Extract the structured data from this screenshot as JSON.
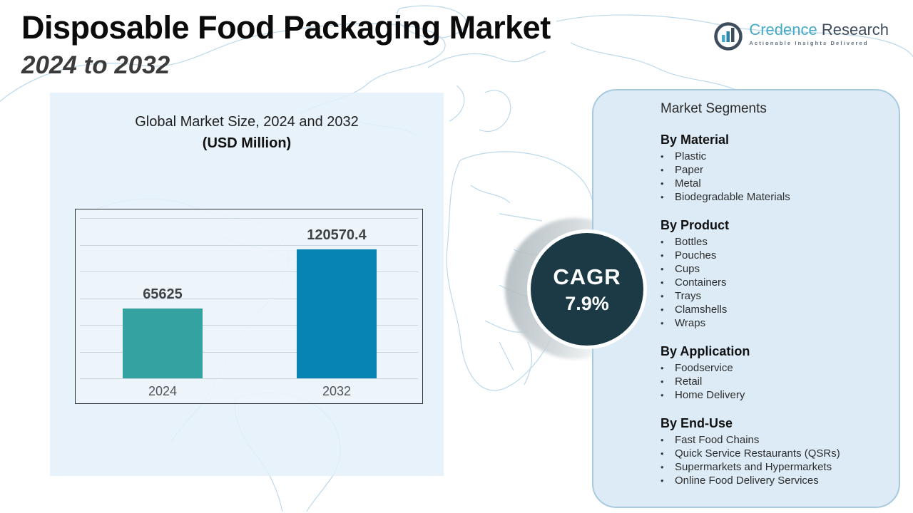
{
  "header": {
    "title": "Disposable Food Packaging Market",
    "subtitle": "2024 to 2032"
  },
  "logo": {
    "brand_primary": "Credence",
    "brand_secondary": "Research",
    "tagline": "Actionable Insights Delivered",
    "brand_primary_color": "#45a9c9",
    "brand_secondary_color": "#3e4d5e"
  },
  "chart_panel": {
    "title_line1": "Global Market Size, 2024 and 2032",
    "title_line2": "(USD Million)"
  },
  "chart_data": {
    "type": "bar",
    "title": "Global Market Size, 2024 and 2032 (USD Million)",
    "categories": [
      "2024",
      "2032"
    ],
    "values": [
      65625,
      120570.4
    ],
    "value_labels": [
      "65625",
      "120570.4"
    ],
    "bar_colors": [
      "#35a2a2",
      "#0884b4"
    ],
    "ylim": [
      0,
      150000
    ],
    "grid": true,
    "gridline_count": 7,
    "legend": "none",
    "xlabel": "",
    "ylabel": ""
  },
  "cagr": {
    "label": "CAGR",
    "value": "7.9%",
    "circle_color": "#1b3a46"
  },
  "segments_panel": {
    "title": "Market Segments",
    "sections": [
      {
        "heading": "By Material",
        "items": [
          "Plastic",
          "Paper",
          "Metal",
          "Biodegradable Materials"
        ]
      },
      {
        "heading": "By Product",
        "items": [
          "Bottles",
          "Pouches",
          "Cups",
          "Containers",
          "Trays",
          "Clamshells",
          "Wraps"
        ]
      },
      {
        "heading": "By Application",
        "items": [
          "Foodservice",
          "Retail",
          "Home Delivery"
        ]
      },
      {
        "heading": "By End-Use",
        "items": [
          "Fast Food Chains",
          "Quick Service Restaurants (QSRs)",
          "Supermarkets and Hypermarkets",
          "Online Food Delivery Services"
        ]
      }
    ]
  },
  "colors": {
    "map_stroke": "#bcd9ea",
    "panel_left_bg": "#e3f0f9",
    "panel_right_bg": "#dcebf5",
    "panel_right_border": "#a8cadf",
    "bar_2024": "#35a2a2",
    "bar_2032": "#0884b4",
    "cagr_circle": "#1b3a46"
  }
}
